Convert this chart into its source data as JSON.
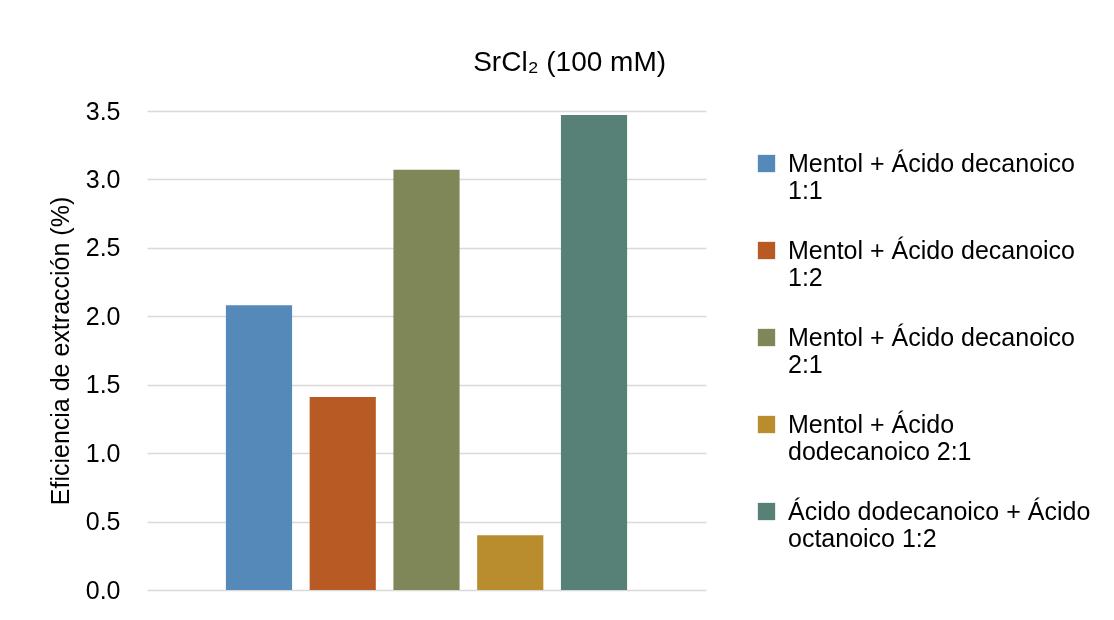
{
  "chart_data": {
    "type": "bar",
    "title": "SrCl₂ (100 mM)",
    "ylabel": "Eficiencia de extracción (%)",
    "categories": [
      null
    ],
    "series": [
      {
        "name": "Mentol + Ácido decanoico 1:1",
        "color": "#5589b9",
        "values": [
          2.08
        ]
      },
      {
        "name": "Mentol + Ácido decanoico 1:2",
        "color": "#b75a24",
        "values": [
          1.41
        ]
      },
      {
        "name": "Mentol + Ácido decanoico 2:1",
        "color": "#7f8657",
        "values": [
          3.07
        ]
      },
      {
        "name": "Mentol + Ácido dodecanoico 2:1",
        "color": "#b98d2d",
        "values": [
          0.4
        ]
      },
      {
        "name": "Ácido dodecanoico + Ácido octanoico 1:2",
        "color": "#578177",
        "values": [
          3.47
        ]
      }
    ],
    "ylim": [
      0,
      3.5
    ],
    "yticks": [
      {
        "value": 0,
        "label": "0.0"
      },
      0.5,
      {
        "value": 1,
        "label": "1.0"
      },
      1.5,
      {
        "value": 2,
        "label": "2.0"
      },
      2.5,
      {
        "value": 3,
        "label": "3.0"
      },
      3.5
    ],
    "grid": "y",
    "legend": "right"
  }
}
